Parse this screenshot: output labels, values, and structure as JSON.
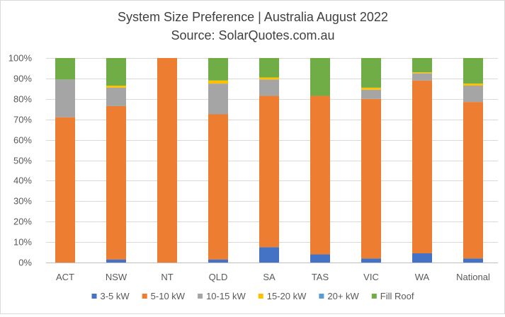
{
  "chart_data": {
    "type": "bar",
    "stacked": true,
    "stacked_percent": true,
    "title": "System Size Preference  | Australia August 2022",
    "subtitle": "Source: SolarQuotes.com.au",
    "categories": [
      "ACT",
      "NSW",
      "NT",
      "QLD",
      "SA",
      "TAS",
      "VIC",
      "WA",
      "National"
    ],
    "ylim": [
      0,
      100
    ],
    "yticks": [
      "0%",
      "10%",
      "20%",
      "30%",
      "40%",
      "50%",
      "60%",
      "70%",
      "80%",
      "90%",
      "100%"
    ],
    "grid": true,
    "legend_position": "bottom",
    "series": [
      {
        "name": "3-5 kW",
        "color": "#4472C4",
        "values": [
          0,
          1.5,
          0,
          1.5,
          7.5,
          4,
          2,
          4.5,
          2
        ]
      },
      {
        "name": "5-10 kW",
        "color": "#ED7D31",
        "values": [
          71,
          75,
          100,
          71,
          74,
          77.5,
          78,
          84.5,
          76.5
        ]
      },
      {
        "name": "10-15 kW",
        "color": "#A5A5A5",
        "values": [
          18.5,
          9,
          0,
          15,
          8,
          0,
          4.5,
          3.5,
          8
        ]
      },
      {
        "name": "15-20 kW",
        "color": "#FFC000",
        "values": [
          0,
          1,
          0,
          1.5,
          1,
          0,
          1,
          0.5,
          1
        ]
      },
      {
        "name": "20+ kW",
        "color": "#5B9BD5",
        "values": [
          0,
          0,
          0,
          0,
          0,
          0,
          0,
          0,
          0
        ]
      },
      {
        "name": "Fill Roof",
        "color": "#70AD47",
        "values": [
          10.5,
          13.5,
          0,
          11,
          9.5,
          18.5,
          14.5,
          7,
          12.5
        ]
      }
    ]
  }
}
